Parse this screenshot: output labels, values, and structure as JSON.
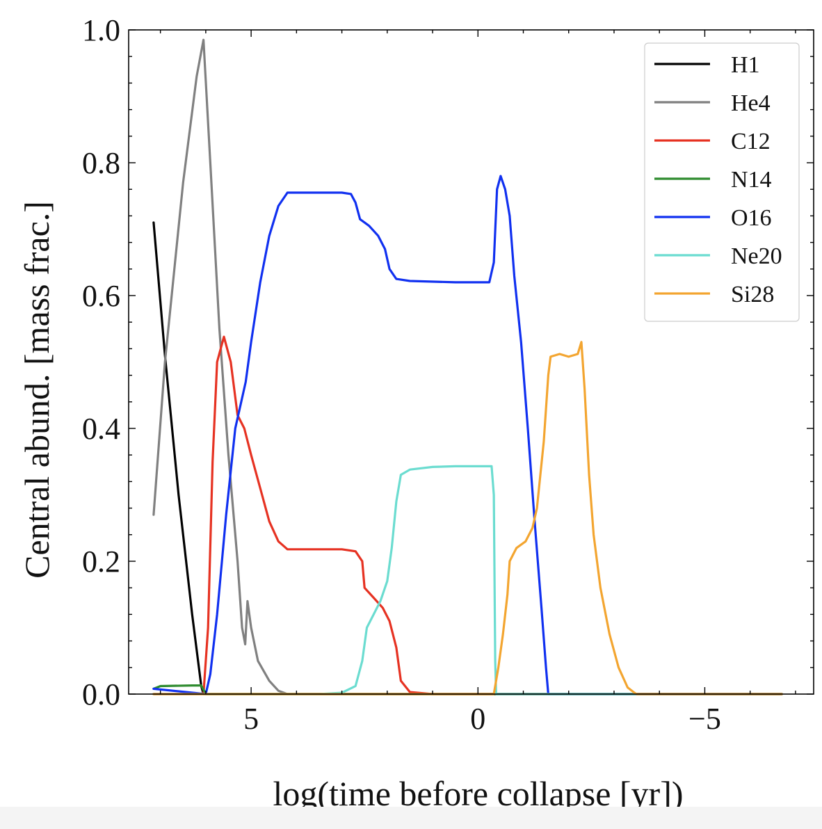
{
  "chart_data": {
    "type": "line",
    "title": "",
    "xlabel": "log(time before collapse [yr])",
    "ylabel": "Central abund. [mass frac.]",
    "xlim": [
      7.7,
      -7.4
    ],
    "ylim": [
      0,
      1.0
    ],
    "x_ticks": [
      5,
      0,
      -5
    ],
    "x_tick_labels": [
      "5",
      "0",
      "−5"
    ],
    "y_ticks": [
      0.0,
      0.2,
      0.4,
      0.6,
      0.8,
      1.0
    ],
    "y_tick_labels": [
      "0.0",
      "0.2",
      "0.4",
      "0.6",
      "0.8",
      "1.0"
    ],
    "x_axis_inverted": true,
    "grid": false,
    "legend_position": "top-right",
    "series": [
      {
        "name": "H1",
        "color": "#000000",
        "points": [
          [
            7.15,
            0.71
          ],
          [
            6.9,
            0.51
          ],
          [
            6.6,
            0.3
          ],
          [
            6.3,
            0.12
          ],
          [
            6.1,
            0.012
          ],
          [
            6.05,
            0.0
          ],
          [
            -6.7,
            0.0
          ]
        ]
      },
      {
        "name": "He4",
        "color": "#808080",
        "points": [
          [
            7.15,
            0.27
          ],
          [
            6.9,
            0.5
          ],
          [
            6.5,
            0.77
          ],
          [
            6.2,
            0.93
          ],
          [
            6.05,
            0.985
          ],
          [
            5.9,
            0.8
          ],
          [
            5.7,
            0.55
          ],
          [
            5.5,
            0.36
          ],
          [
            5.3,
            0.2
          ],
          [
            5.2,
            0.1
          ],
          [
            5.13,
            0.075
          ],
          [
            5.08,
            0.14
          ],
          [
            5.0,
            0.1
          ],
          [
            4.85,
            0.05
          ],
          [
            4.6,
            0.02
          ],
          [
            4.4,
            0.005
          ],
          [
            4.2,
            0.0
          ],
          [
            -6.7,
            0.0
          ]
        ]
      },
      {
        "name": "C12",
        "color": "#e63222",
        "points": [
          [
            7.15,
            0.0
          ],
          [
            6.05,
            0.0
          ],
          [
            5.95,
            0.1
          ],
          [
            5.85,
            0.35
          ],
          [
            5.75,
            0.5
          ],
          [
            5.6,
            0.538
          ],
          [
            5.45,
            0.5
          ],
          [
            5.3,
            0.42
          ],
          [
            5.15,
            0.4
          ],
          [
            5.0,
            0.36
          ],
          [
            4.8,
            0.31
          ],
          [
            4.6,
            0.26
          ],
          [
            4.4,
            0.23
          ],
          [
            4.2,
            0.218
          ],
          [
            3.8,
            0.218
          ],
          [
            3.0,
            0.218
          ],
          [
            2.7,
            0.215
          ],
          [
            2.55,
            0.2
          ],
          [
            2.5,
            0.16
          ],
          [
            2.3,
            0.145
          ],
          [
            2.1,
            0.13
          ],
          [
            1.95,
            0.11
          ],
          [
            1.8,
            0.07
          ],
          [
            1.7,
            0.02
          ],
          [
            1.5,
            0.003
          ],
          [
            1.0,
            0.0
          ],
          [
            -6.7,
            0.0
          ]
        ]
      },
      {
        "name": "N14",
        "color": "#2e8b2e",
        "points": [
          [
            7.15,
            0.008
          ],
          [
            7.0,
            0.012
          ],
          [
            6.3,
            0.013
          ],
          [
            6.1,
            0.013
          ],
          [
            6.0,
            0.0
          ],
          [
            -6.7,
            0.0
          ]
        ]
      },
      {
        "name": "O16",
        "color": "#1030f0",
        "points": [
          [
            7.15,
            0.008
          ],
          [
            6.0,
            0.0
          ],
          [
            5.9,
            0.03
          ],
          [
            5.75,
            0.12
          ],
          [
            5.55,
            0.27
          ],
          [
            5.35,
            0.4
          ],
          [
            5.12,
            0.47
          ],
          [
            5.0,
            0.53
          ],
          [
            4.8,
            0.62
          ],
          [
            4.6,
            0.69
          ],
          [
            4.4,
            0.735
          ],
          [
            4.2,
            0.755
          ],
          [
            3.8,
            0.755
          ],
          [
            3.0,
            0.755
          ],
          [
            2.8,
            0.753
          ],
          [
            2.7,
            0.74
          ],
          [
            2.6,
            0.715
          ],
          [
            2.4,
            0.705
          ],
          [
            2.2,
            0.69
          ],
          [
            2.05,
            0.67
          ],
          [
            1.95,
            0.64
          ],
          [
            1.8,
            0.625
          ],
          [
            1.5,
            0.622
          ],
          [
            0.5,
            0.62
          ],
          [
            -0.25,
            0.62
          ],
          [
            -0.35,
            0.65
          ],
          [
            -0.42,
            0.76
          ],
          [
            -0.5,
            0.78
          ],
          [
            -0.6,
            0.76
          ],
          [
            -0.7,
            0.72
          ],
          [
            -0.8,
            0.63
          ],
          [
            -0.95,
            0.53
          ],
          [
            -1.1,
            0.4
          ],
          [
            -1.25,
            0.26
          ],
          [
            -1.4,
            0.13
          ],
          [
            -1.5,
            0.04
          ],
          [
            -1.55,
            0.0
          ],
          [
            -6.7,
            0.0
          ]
        ]
      },
      {
        "name": "Ne20",
        "color": "#6bdcd0",
        "points": [
          [
            7.15,
            0.0
          ],
          [
            3.5,
            0.0
          ],
          [
            3.0,
            0.002
          ],
          [
            2.7,
            0.012
          ],
          [
            2.55,
            0.05
          ],
          [
            2.45,
            0.1
          ],
          [
            2.3,
            0.12
          ],
          [
            2.15,
            0.14
          ],
          [
            2.0,
            0.17
          ],
          [
            1.9,
            0.22
          ],
          [
            1.8,
            0.29
          ],
          [
            1.7,
            0.33
          ],
          [
            1.5,
            0.338
          ],
          [
            1.0,
            0.342
          ],
          [
            0.5,
            0.343
          ],
          [
            -0.1,
            0.343
          ],
          [
            -0.3,
            0.343
          ],
          [
            -0.35,
            0.3
          ],
          [
            -0.38,
            0.05
          ],
          [
            -0.4,
            0.0
          ],
          [
            -6.7,
            0.0
          ]
        ]
      },
      {
        "name": "Si28",
        "color": "#f3a530",
        "points": [
          [
            7.15,
            0.0
          ],
          [
            -0.35,
            0.0
          ],
          [
            -0.45,
            0.04
          ],
          [
            -0.55,
            0.09
          ],
          [
            -0.65,
            0.15
          ],
          [
            -0.7,
            0.2
          ],
          [
            -0.85,
            0.22
          ],
          [
            -1.05,
            0.23
          ],
          [
            -1.2,
            0.25
          ],
          [
            -1.3,
            0.28
          ],
          [
            -1.45,
            0.38
          ],
          [
            -1.55,
            0.48
          ],
          [
            -1.6,
            0.508
          ],
          [
            -1.8,
            0.512
          ],
          [
            -2.0,
            0.508
          ],
          [
            -2.2,
            0.512
          ],
          [
            -2.28,
            0.53
          ],
          [
            -2.35,
            0.46
          ],
          [
            -2.45,
            0.33
          ],
          [
            -2.55,
            0.24
          ],
          [
            -2.7,
            0.16
          ],
          [
            -2.9,
            0.09
          ],
          [
            -3.1,
            0.04
          ],
          [
            -3.3,
            0.01
          ],
          [
            -3.45,
            0.002
          ],
          [
            -3.5,
            0.0
          ],
          [
            -6.7,
            0.0
          ]
        ]
      }
    ]
  }
}
